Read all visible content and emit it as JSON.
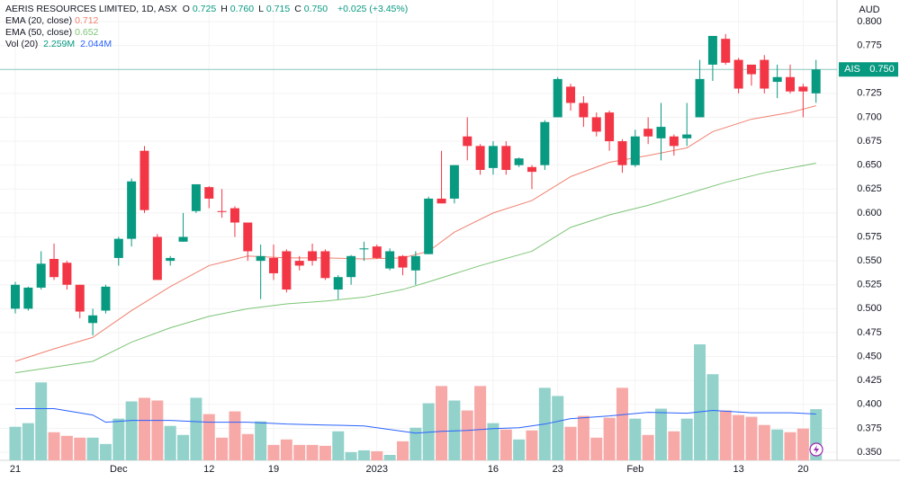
{
  "chart_data": {
    "type": "candlestick",
    "title": "AERIS RESOURCES LIMITED, 1D, ASX",
    "ohlc_legend": [
      {
        "label": "O",
        "value": "0.725"
      },
      {
        "label": "H",
        "value": "0.760"
      },
      {
        "label": "L",
        "value": "0.715"
      },
      {
        "label": "C",
        "value": "0.750"
      }
    ],
    "change": "+0.025 (+3.45%)",
    "categories": [
      "21",
      null,
      null,
      null,
      null,
      null,
      null,
      null,
      "Dec",
      null,
      null,
      null,
      null,
      null,
      null,
      "12",
      null,
      null,
      null,
      null,
      "19",
      null,
      null,
      null,
      null,
      null,
      null,
      null,
      "2023",
      null,
      null,
      null,
      null,
      null,
      null,
      null,
      null,
      "16",
      null,
      null,
      null,
      null,
      "23",
      null,
      null,
      null,
      null,
      null,
      "Feb",
      null,
      null,
      null,
      null,
      null,
      null,
      null,
      "13",
      null,
      null,
      null,
      null,
      "20",
      null
    ],
    "open": [
      0.5,
      0.5,
      0.522,
      0.552,
      0.548,
      0.525,
      0.485,
      0.498,
      0.553,
      0.573,
      0.665,
      0.575,
      0.55,
      0.57,
      0.602,
      0.627,
      0.602,
      0.605,
      0.59,
      0.55,
      0.553,
      0.56,
      0.55,
      0.56,
      0.56,
      0.52,
      0.533,
      0.562,
      0.565,
      0.542,
      0.555,
      0.54,
      0.557,
      0.615,
      0.615,
      0.68,
      0.67,
      0.647,
      0.67,
      0.65,
      0.648,
      0.65,
      0.7,
      0.732,
      0.715,
      0.7,
      0.705,
      0.675,
      0.65,
      0.688,
      0.678,
      0.68,
      0.678,
      0.7,
      0.755,
      0.782,
      0.76,
      0.755,
      0.76,
      0.737,
      0.742,
      0.732,
      0.725
    ],
    "high": [
      0.528,
      0.523,
      0.56,
      0.568,
      0.55,
      0.525,
      0.5,
      0.525,
      0.575,
      0.636,
      0.67,
      0.578,
      0.555,
      0.6,
      0.63,
      0.628,
      0.625,
      0.607,
      0.59,
      0.567,
      0.567,
      0.562,
      0.555,
      0.568,
      0.562,
      0.535,
      0.556,
      0.57,
      0.567,
      0.563,
      0.556,
      0.56,
      0.617,
      0.665,
      0.65,
      0.7,
      0.672,
      0.675,
      0.675,
      0.658,
      0.65,
      0.697,
      0.742,
      0.735,
      0.722,
      0.705,
      0.707,
      0.677,
      0.687,
      0.7,
      0.715,
      0.682,
      0.715,
      0.76,
      0.785,
      0.787,
      0.762,
      0.755,
      0.765,
      0.755,
      0.755,
      0.735,
      0.76
    ],
    "low": [
      0.495,
      0.498,
      0.52,
      0.53,
      0.52,
      0.49,
      0.472,
      0.495,
      0.545,
      0.565,
      0.6,
      0.53,
      0.545,
      0.57,
      0.6,
      0.605,
      0.595,
      0.575,
      0.55,
      0.51,
      0.53,
      0.517,
      0.54,
      0.545,
      0.53,
      0.51,
      0.525,
      0.55,
      0.552,
      0.54,
      0.535,
      0.525,
      0.557,
      0.61,
      0.61,
      0.655,
      0.64,
      0.64,
      0.64,
      0.648,
      0.625,
      0.645,
      0.7,
      0.707,
      0.69,
      0.68,
      0.665,
      0.642,
      0.648,
      0.672,
      0.655,
      0.66,
      0.67,
      0.7,
      0.738,
      0.755,
      0.725,
      0.733,
      0.725,
      0.72,
      0.725,
      0.7,
      0.715
    ],
    "close": [
      0.525,
      0.522,
      0.547,
      0.533,
      0.525,
      0.497,
      0.493,
      0.523,
      0.573,
      0.633,
      0.603,
      0.53,
      0.553,
      0.575,
      0.63,
      0.615,
      0.601,
      0.59,
      0.56,
      0.555,
      0.537,
      0.52,
      0.545,
      0.55,
      0.532,
      0.533,
      0.555,
      0.563,
      0.553,
      0.56,
      0.543,
      0.555,
      0.615,
      0.61,
      0.65,
      0.67,
      0.645,
      0.67,
      0.645,
      0.657,
      0.643,
      0.695,
      0.74,
      0.715,
      0.7,
      0.685,
      0.675,
      0.65,
      0.68,
      0.68,
      0.69,
      0.67,
      0.682,
      0.74,
      0.785,
      0.757,
      0.73,
      0.745,
      0.73,
      0.742,
      0.727,
      0.727,
      0.75
    ],
    "up_color": "#089981",
    "down_color": "#f23645",
    "y_axis_label": "AUD",
    "ylim": [
      0.35,
      0.8
    ],
    "yticks": [
      {
        "value": 0.35,
        "label": "0.350"
      },
      {
        "value": 0.375,
        "label": "0.375"
      },
      {
        "value": 0.4,
        "label": "0.400"
      },
      {
        "value": 0.425,
        "label": "0.425"
      },
      {
        "value": 0.45,
        "label": "0.450"
      },
      {
        "value": 0.475,
        "label": "0.475"
      },
      {
        "value": 0.5,
        "label": "0.500"
      },
      {
        "value": 0.525,
        "label": "0.525"
      },
      {
        "value": 0.55,
        "label": "0.550"
      },
      {
        "value": 0.575,
        "label": "0.575"
      },
      {
        "value": 0.6,
        "label": "0.600"
      },
      {
        "value": 0.625,
        "label": "0.625"
      },
      {
        "value": 0.65,
        "label": "0.650"
      },
      {
        "value": 0.675,
        "label": "0.675"
      },
      {
        "value": 0.7,
        "label": "0.700"
      },
      {
        "value": 0.725,
        "label": "0.725"
      },
      {
        "value": 0.75,
        "label": "0.750"
      },
      {
        "value": 0.775,
        "label": "0.775"
      },
      {
        "value": 0.8,
        "label": "0.800"
      }
    ],
    "grid": true,
    "last_price": {
      "symbol": "AIS",
      "value": 0.75,
      "label": "0.750"
    },
    "overlays": [
      {
        "name": "EMA (20, close)",
        "value_label": "0.712",
        "color": "#f0806f",
        "x": [
          0,
          3,
          6,
          9,
          12,
          15,
          18,
          21,
          24,
          27,
          30,
          32,
          34,
          37,
          40,
          43,
          46,
          49,
          52,
          54,
          57,
          60,
          62
        ],
        "values": [
          0.445,
          0.458,
          0.47,
          0.498,
          0.523,
          0.545,
          0.555,
          0.553,
          0.553,
          0.552,
          0.553,
          0.56,
          0.58,
          0.6,
          0.613,
          0.638,
          0.653,
          0.66,
          0.668,
          0.685,
          0.698,
          0.705,
          0.712
        ]
      },
      {
        "name": "EMA (50, close)",
        "value_label": "0.652",
        "color": "#7cc576",
        "x": [
          0,
          6,
          9,
          12,
          15,
          18,
          21,
          24,
          27,
          30,
          32,
          36,
          40,
          43,
          46,
          49,
          52,
          55,
          58,
          62
        ],
        "values": [
          0.433,
          0.445,
          0.465,
          0.48,
          0.492,
          0.5,
          0.505,
          0.508,
          0.512,
          0.52,
          0.528,
          0.545,
          0.56,
          0.585,
          0.598,
          0.608,
          0.62,
          0.632,
          0.642,
          0.652
        ]
      }
    ],
    "volume": {
      "name": "Vol (20)",
      "value_label": "2.259M",
      "up_color": "#92d2cb",
      "down_color": "#f7a9a7",
      "values": [
        1.48,
        1.64,
        3.44,
        1.24,
        1.08,
        1.0,
        1.0,
        0.72,
        1.84,
        2.6,
        2.76,
        2.64,
        1.52,
        1.12,
        2.76,
        2.04,
        1.0,
        2.16,
        1.16,
        1.72,
        0.68,
        0.92,
        0.68,
        0.68,
        0.64,
        1.28,
        0.36,
        0.44,
        0.4,
        0.24,
        0.84,
        1.44,
        2.52,
        3.28,
        2.64,
        2.2,
        3.28,
        1.64,
        1.36,
        0.92,
        1.32,
        3.2,
        2.84,
        1.48,
        1.96,
        1.0,
        1.88,
        3.2,
        1.84,
        1.12,
        2.28,
        1.28,
        1.84,
        5.12,
        3.8,
        2.2,
        2.0,
        1.92,
        1.56,
        1.36,
        1.24,
        1.4,
        2.259
      ],
      "ma": {
        "value_label": "2.044M",
        "color": "#2962ff",
        "x": [
          0,
          3,
          6,
          7,
          9,
          12,
          15,
          18,
          21,
          24,
          27,
          29,
          31,
          33,
          35,
          37,
          39,
          41,
          43,
          46,
          49,
          52,
          54,
          57,
          60,
          62
        ],
        "values": [
          2.28,
          2.28,
          2.0,
          1.68,
          1.76,
          1.76,
          1.68,
          1.68,
          1.6,
          1.56,
          1.52,
          1.36,
          1.2,
          1.28,
          1.32,
          1.4,
          1.44,
          1.6,
          1.84,
          1.96,
          2.12,
          2.08,
          2.2,
          2.1,
          2.1,
          2.044
        ]
      }
    }
  }
}
